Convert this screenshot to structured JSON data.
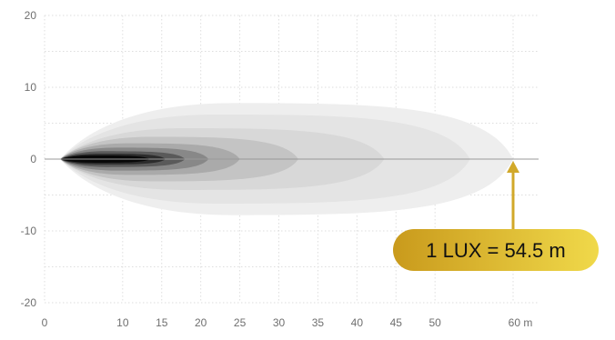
{
  "chart_data": {
    "type": "area",
    "description_role": "LED light beam distribution (isolux contours, top view)",
    "x_ticks": [
      "0",
      "10",
      "15",
      "20",
      "25",
      "30",
      "35",
      "40",
      "45",
      "50",
      "60 m"
    ],
    "y_ticks": [
      "20",
      "10",
      "0",
      "-10",
      "-20"
    ],
    "xlim": [
      0,
      60
    ],
    "ylim": [
      -20,
      20
    ],
    "grid": true,
    "contours": [
      {
        "color": "#eeeeee",
        "start": 2,
        "end": 60.0,
        "halfwidth": 7.8
      },
      {
        "color": "#e4e4e4",
        "start": 2,
        "end": 54.5,
        "halfwidth": 6.2
      },
      {
        "color": "#d8d8d8",
        "start": 2,
        "end": 43.5,
        "halfwidth": 4.3
      },
      {
        "color": "#c4c4c4",
        "start": 2,
        "end": 32.5,
        "halfwidth": 3.1
      },
      {
        "color": "#aaaaaa",
        "start": 2,
        "end": 25.0,
        "halfwidth": 2.2
      },
      {
        "color": "#888888",
        "start": 2,
        "end": 21.0,
        "halfwidth": 1.6
      },
      {
        "color": "#5a5a5a",
        "start": 2,
        "end": 18.0,
        "halfwidth": 1.1
      },
      {
        "color": "#2c2c2c",
        "start": 2,
        "end": 15.5,
        "halfwidth": 0.75
      },
      {
        "color": "#080808",
        "start": 2,
        "end": 13.5,
        "halfwidth": 0.5
      }
    ],
    "marker": {
      "x": 60,
      "label": "1 LUX = 54.5 m"
    },
    "colors": {
      "badge_start": "#c99a1c",
      "badge_end": "#f0d94a",
      "arrow": "#d1a829",
      "axis": "#999999",
      "grid": "#dedede"
    }
  }
}
